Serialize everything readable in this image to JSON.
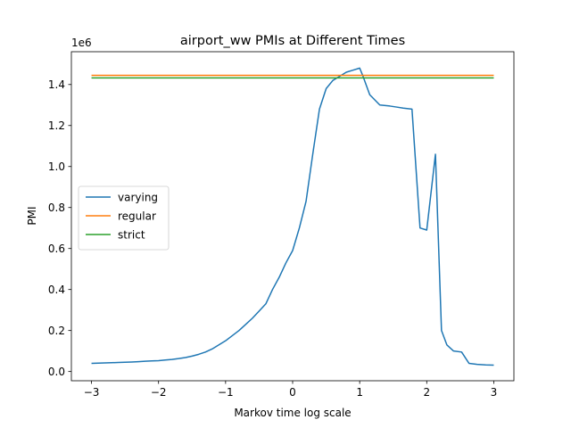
{
  "chart_data": {
    "type": "line",
    "title": "airport_ww PMIs at Different Times",
    "xlabel": "Markov time log scale",
    "ylabel": "PMI",
    "offset_text": "1e6",
    "xlim": [
      -3.3,
      3.3
    ],
    "ylim": [
      -45000,
      1560000
    ],
    "x_ticks": [
      -3,
      -2,
      -1,
      0,
      1,
      2,
      3
    ],
    "x_tick_labels": [
      "−3",
      "−2",
      "−1",
      "0",
      "1",
      "2",
      "3"
    ],
    "y_ticks": [
      0,
      200000,
      400000,
      600000,
      800000,
      1000000,
      1200000,
      1400000
    ],
    "y_tick_labels": [
      "0.0",
      "0.2",
      "0.4",
      "0.6",
      "0.8",
      "1.0",
      "1.2",
      "1.4"
    ],
    "grid": false,
    "legend_placement": "center-left",
    "series": [
      {
        "name": "varying",
        "color": "#1f77b4",
        "x": [
          -3.0,
          -2.9,
          -2.8,
          -2.7,
          -2.6,
          -2.5,
          -2.4,
          -2.3,
          -2.2,
          -2.1,
          -2.0,
          -1.9,
          -1.8,
          -1.7,
          -1.6,
          -1.5,
          -1.4,
          -1.3,
          -1.2,
          -1.1,
          -1.0,
          -0.9,
          -0.8,
          -0.7,
          -0.6,
          -0.5,
          -0.4,
          -0.3,
          -0.2,
          -0.1,
          0.0,
          0.1,
          0.2,
          0.3,
          0.4,
          0.5,
          0.6,
          0.7,
          0.8,
          0.9,
          1.0,
          1.05,
          1.15,
          1.3,
          1.45,
          1.55,
          1.65,
          1.78,
          1.9,
          2.0,
          2.13,
          2.22,
          2.3,
          2.4,
          2.52,
          2.63,
          2.75,
          2.88,
          3.0
        ],
        "values": [
          40000,
          41000,
          42000,
          43000,
          44000,
          45000,
          46500,
          48000,
          50000,
          51500,
          53000,
          56000,
          59000,
          63000,
          68000,
          75000,
          84000,
          95000,
          110000,
          130000,
          150000,
          175000,
          200000,
          230000,
          260000,
          295000,
          330000,
          400000,
          460000,
          530000,
          590000,
          700000,
          830000,
          1060000,
          1280000,
          1380000,
          1420000,
          1440000,
          1460000,
          1470000,
          1480000,
          1440000,
          1350000,
          1300000,
          1295000,
          1290000,
          1285000,
          1280000,
          700000,
          690000,
          1060000,
          200000,
          130000,
          100000,
          95000,
          40000,
          35000,
          32000,
          31000
        ]
      },
      {
        "name": "regular",
        "color": "#ff7f0e",
        "x": [
          -3.0,
          3.0
        ],
        "values": [
          1445000,
          1445000
        ]
      },
      {
        "name": "strict",
        "color": "#2ca02c",
        "x": [
          -3.0,
          3.0
        ],
        "values": [
          1432000,
          1432000
        ]
      }
    ]
  }
}
